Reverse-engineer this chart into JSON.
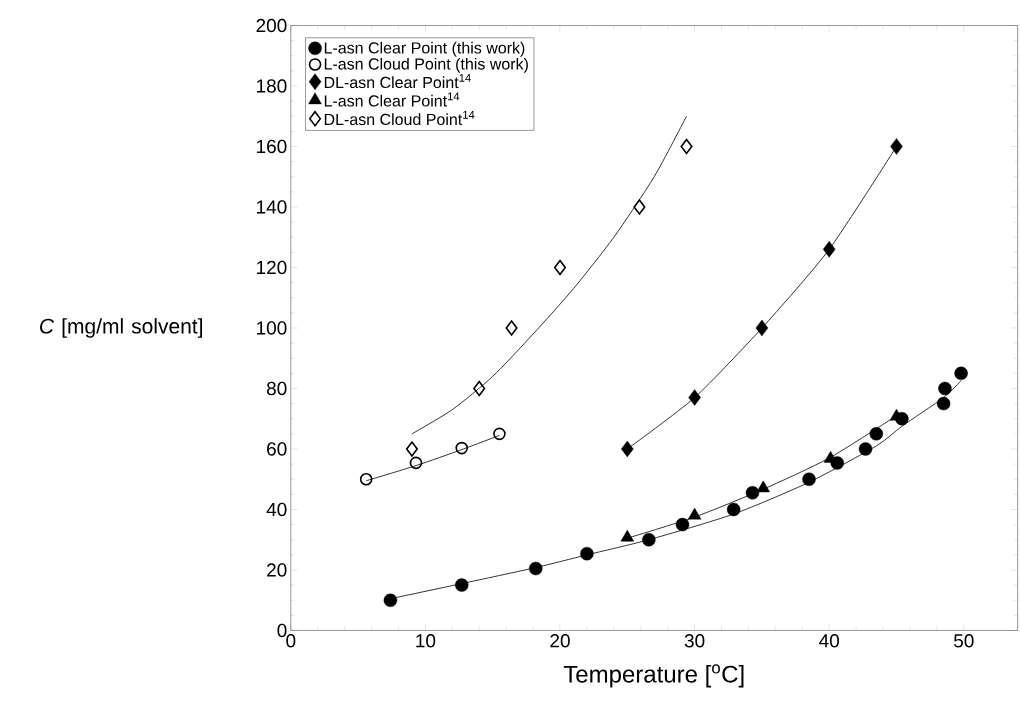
{
  "chart_data": {
    "type": "scatter",
    "xlabel": "Temperature [$^{o}$C]",
    "ylabel": "*C* [mg/ml solvent]",
    "xlim": [
      0,
      54
    ],
    "ylim": [
      0,
      200
    ],
    "xticks": [
      0,
      10,
      20,
      30,
      40,
      50
    ],
    "yticks": [
      0,
      20,
      40,
      60,
      80,
      100,
      120,
      140,
      160,
      180,
      200
    ],
    "legend": "top left",
    "grid": false,
    "series": [
      {
        "name": "L-asn Clear Point (this work)",
        "color": "#000000",
        "marker": "circle",
        "x": [
          7.4,
          12.7,
          18.2,
          22.0,
          26.6,
          29.1,
          32.9,
          34.3,
          38.5,
          40.6,
          42.7,
          43.5,
          45.4,
          48.5,
          48.6,
          49.8
        ],
        "values": [
          10,
          15,
          20.5,
          25.4,
          30,
          35,
          40,
          45.5,
          50,
          55.4,
          60,
          65,
          70,
          75,
          80,
          85
        ]
      },
      {
        "name": "L-asn Cloud Point (this work)",
        "color": "#000000",
        "marker": "circle-open",
        "x": [
          5.6,
          9.3,
          12.7,
          15.5
        ],
        "values": [
          50,
          55.4,
          60.3,
          65
        ]
      },
      {
        "name": "DL-asn Clear Point$^{14}$",
        "color": "#000000",
        "marker": "diamond",
        "x": [
          25,
          30,
          35,
          40,
          45
        ],
        "values": [
          60,
          77,
          100,
          126,
          160
        ]
      },
      {
        "name": "L-asn Clear Point$^{14}$",
        "color": "#000000",
        "marker": "triangle",
        "x": [
          25,
          30,
          35.1,
          40.1,
          45
        ],
        "values": [
          30.7,
          38,
          47,
          56.8,
          70.7
        ]
      },
      {
        "name": "DL-asn Cloud Point$^{14}$",
        "color": "#000000",
        "marker": "diamond-open",
        "x": [
          9,
          14,
          16.4,
          20,
          25.9,
          29.4
        ],
        "values": [
          60,
          80,
          100,
          120,
          140,
          160
        ]
      },
      {
        "type": "line",
        "color": "#000000",
        "x": [
          7.4,
          12.7,
          18.2,
          22.0,
          26.6,
          32.9,
          38.5,
          43.5,
          45.4,
          48.5,
          49.8
        ],
        "values": [
          10.5,
          15.5,
          20.8,
          25,
          30,
          38.5,
          49,
          61,
          67.5,
          77,
          82.6
        ]
      },
      {
        "type": "line",
        "color": "#000000",
        "x": [
          25,
          30,
          35,
          40,
          45
        ],
        "values": [
          30.5,
          37.5,
          46.5,
          57,
          71
        ]
      },
      {
        "type": "line",
        "color": "#000000",
        "x": [
          5.6,
          9.3,
          12.7,
          15.5
        ],
        "values": [
          49.5,
          54.5,
          59.8,
          64.5
        ]
      },
      {
        "type": "line",
        "color": "#000000",
        "x": [
          25,
          30,
          35,
          40,
          45
        ],
        "values": [
          60,
          77,
          100,
          126,
          160
        ]
      },
      {
        "type": "line",
        "color": "#000000",
        "x": [
          9,
          12,
          15,
          18,
          21,
          24,
          27,
          29.4
        ],
        "values": [
          65,
          73,
          84,
          98,
          113,
          130,
          150,
          170
        ]
      }
    ]
  }
}
